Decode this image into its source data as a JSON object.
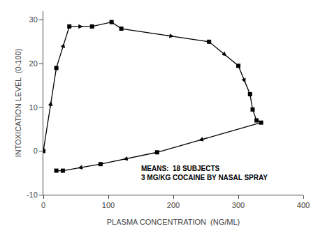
{
  "chart_data": {
    "type": "line",
    "xlabel": "PLASMA CONCENTRATION  (NG/ML)",
    "ylabel": "INTOXICATION LEVEL  (0-100)",
    "annotation": "MEANS:  18 SUBJECTS\n3 MG/KG COCAINE BY NASAL SPRAY",
    "x": [
      0,
      20,
      40,
      75,
      105,
      120,
      255,
      300,
      318,
      322,
      328,
      335,
      175,
      88,
      30,
      20
    ],
    "values": [
      0,
      19,
      28.5,
      28.5,
      29.5,
      28,
      25,
      19.5,
      13,
      9.5,
      7,
      6.5,
      -0.3,
      -3.0,
      -4.5,
      -4.5
    ],
    "color": "#000000",
    "marker": "square",
    "xlim": [
      0,
      400
    ],
    "ylim": [
      -10,
      32
    ],
    "xticks": [
      0,
      100,
      200,
      300,
      400
    ],
    "yticks": [
      -10,
      0,
      10,
      20,
      30
    ],
    "grid": false
  }
}
